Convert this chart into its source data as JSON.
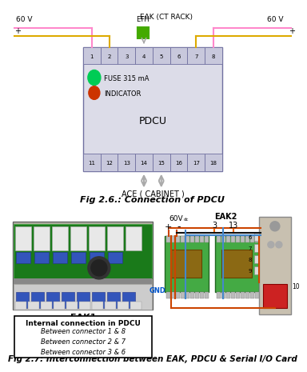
{
  "fig_title_top": "Fig 2.6.: Connection of PDCU",
  "fig_title_bottom": "Fig 2.7: Interconnection between EAK, PDCU & Serial I/O Card",
  "top_connectors": [
    "1",
    "2",
    "3",
    "4",
    "5",
    "6",
    "7",
    "8"
  ],
  "bottom_connectors": [
    "11",
    "12",
    "13",
    "14",
    "15",
    "16",
    "17",
    "18"
  ],
  "fuse_label": "FUSE 315 mA",
  "indicator_label": "INDICATOR",
  "pdcu_label": "PDCU",
  "eak_label": "EAK (CT RACK)",
  "ace_label": "ACE ( CABINET )",
  "eth_label": "ETH",
  "v60_label": "60 V",
  "internal_title": "Internal connection in PDCU",
  "internal_lines": [
    "Between connector 1 & 8",
    "Between connector 2 & 7",
    "Between connector 3 & 6"
  ],
  "eak1_label": "EAK1",
  "eak2_label": "EAK2",
  "gnd_label": "GND",
  "background_color": "#ffffff",
  "pdcu_face": "#dcdce8",
  "pdcu_edge": "#7070a0",
  "conn_face": "#c8c8dc",
  "pink_color": "#ff88cc",
  "yellow_color": "#ddaa00",
  "green_eth": "#44aa00",
  "gray_arrow": "#aaaaaa",
  "orange_wire": "#cc4400",
  "blue_wire": "#4488cc",
  "black_wire": "#111111",
  "gnd_color": "#0055cc"
}
